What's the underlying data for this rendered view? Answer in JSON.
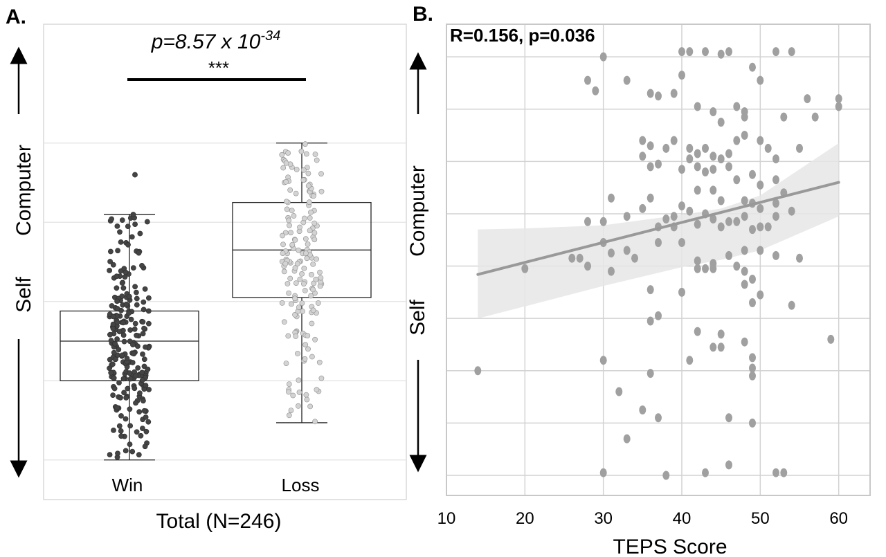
{
  "chart_data": [
    {
      "type": "box",
      "panel_label": "A.",
      "xlabel": "Total (N=246)",
      "categories": [
        "Win",
        "Loss"
      ],
      "y_direction_labels": {
        "upper": "Computer",
        "lower": "Self"
      },
      "ylim": [
        -0.5,
        5.5
      ],
      "grid": true,
      "annotation": {
        "prefix": "p=8.57 x 10",
        "exponent": "-34",
        "significance": "***"
      },
      "boxes": [
        {
          "name": "Win",
          "q1": 1.0,
          "median": 1.5,
          "q3": 1.88,
          "whisker_low": 0.0,
          "whisker_high": 3.1,
          "outliers": [
            3.6
          ],
          "point_color": "#444444"
        },
        {
          "name": "Loss",
          "q1": 2.05,
          "median": 2.65,
          "q3": 3.25,
          "whisker_low": 0.47,
          "whisker_high": 4.0,
          "outliers": [],
          "point_color": "#d3d3d3"
        }
      ]
    },
    {
      "type": "scatter",
      "panel_label": "B.",
      "annotation": "R=0.156, p=0.036",
      "xlabel": "TEPS Score",
      "y_direction_labels": {
        "upper": "Computer",
        "lower": "Self"
      },
      "xlim": [
        10,
        64
      ],
      "xticks": [
        10,
        20,
        30,
        40,
        50,
        60
      ],
      "ylim": [
        0,
        8.2
      ],
      "grid": true,
      "regression": {
        "x": [
          14,
          60
        ],
        "y": [
          3.84,
          5.6
        ]
      },
      "ci_band": {
        "x": [
          14,
          20,
          30,
          40,
          45,
          50,
          60
        ],
        "upper": [
          4.7,
          4.72,
          4.78,
          4.98,
          5.1,
          5.35,
          6.35
        ],
        "lower": [
          3.0,
          3.23,
          3.62,
          3.98,
          4.12,
          4.3,
          4.95
        ]
      },
      "points": [
        [
          30,
          8.0
        ],
        [
          28,
          7.55
        ],
        [
          29,
          7.35
        ],
        [
          33,
          7.55
        ],
        [
          40,
          8.1
        ],
        [
          41,
          8.1
        ],
        [
          43,
          8.1
        ],
        [
          45,
          8.05
        ],
        [
          46,
          8.1
        ],
        [
          52,
          8.1
        ],
        [
          54,
          8.1
        ],
        [
          49,
          7.8
        ],
        [
          40,
          7.65
        ],
        [
          50,
          7.55
        ],
        [
          36,
          7.3
        ],
        [
          37,
          7.25
        ],
        [
          39,
          7.3
        ],
        [
          42,
          7.05
        ],
        [
          47,
          7.05
        ],
        [
          48,
          6.95
        ],
        [
          56,
          7.2
        ],
        [
          60,
          7.2
        ],
        [
          60,
          7.05
        ],
        [
          57,
          6.85
        ],
        [
          44,
          6.95
        ],
        [
          48,
          6.85
        ],
        [
          53,
          6.85
        ],
        [
          45,
          6.75
        ],
        [
          35,
          6.4
        ],
        [
          36,
          6.3
        ],
        [
          38,
          6.25
        ],
        [
          39,
          6.4
        ],
        [
          41,
          6.25
        ],
        [
          42,
          6.15
        ],
        [
          43,
          6.25
        ],
        [
          44,
          6.1
        ],
        [
          45,
          6.05
        ],
        [
          46,
          6.15
        ],
        [
          47,
          6.4
        ],
        [
          48,
          6.5
        ],
        [
          50,
          6.4
        ],
        [
          51,
          6.25
        ],
        [
          52,
          6.05
        ],
        [
          55,
          6.25
        ],
        [
          35,
          6.1
        ],
        [
          36,
          5.9
        ],
        [
          37,
          5.95
        ],
        [
          40,
          5.85
        ],
        [
          41,
          6.05
        ],
        [
          42,
          5.9
        ],
        [
          43,
          5.8
        ],
        [
          44,
          5.85
        ],
        [
          46,
          5.9
        ],
        [
          47,
          5.65
        ],
        [
          49,
          5.75
        ],
        [
          50,
          5.55
        ],
        [
          52,
          5.65
        ],
        [
          31,
          5.3
        ],
        [
          36,
          5.3
        ],
        [
          40,
          5.15
        ],
        [
          42,
          5.45
        ],
        [
          44,
          5.45
        ],
        [
          45,
          5.25
        ],
        [
          48,
          5.25
        ],
        [
          49,
          5.2
        ],
        [
          50,
          5.1
        ],
        [
          52,
          5.2
        ],
        [
          53,
          5.4
        ],
        [
          35,
          5.1
        ],
        [
          38,
          4.9
        ],
        [
          39,
          4.95
        ],
        [
          41,
          5.05
        ],
        [
          43,
          5.0
        ],
        [
          44,
          4.9
        ],
        [
          46,
          4.85
        ],
        [
          48,
          4.95
        ],
        [
          50,
          4.75
        ],
        [
          52,
          4.95
        ],
        [
          54,
          5.05
        ],
        [
          28,
          4.85
        ],
        [
          30,
          4.85
        ],
        [
          33,
          4.95
        ],
        [
          37,
          4.75
        ],
        [
          39,
          4.75
        ],
        [
          42,
          4.8
        ],
        [
          45,
          4.75
        ],
        [
          47,
          4.85
        ],
        [
          49,
          4.7
        ],
        [
          51,
          4.75
        ],
        [
          30,
          4.45
        ],
        [
          31,
          4.25
        ],
        [
          33,
          4.3
        ],
        [
          34,
          4.15
        ],
        [
          37,
          4.45
        ],
        [
          40,
          4.45
        ],
        [
          42,
          4.1
        ],
        [
          44,
          4.05
        ],
        [
          46,
          4.2
        ],
        [
          48,
          4.3
        ],
        [
          50,
          4.3
        ],
        [
          52,
          4.2
        ],
        [
          55,
          4.15
        ],
        [
          26,
          4.15
        ],
        [
          27,
          4.15
        ],
        [
          28,
          4.0
        ],
        [
          31,
          3.9
        ],
        [
          20,
          3.95
        ],
        [
          42,
          3.95
        ],
        [
          43,
          3.95
        ],
        [
          44,
          3.95
        ],
        [
          47,
          4.0
        ],
        [
          48,
          3.9
        ],
        [
          49,
          3.75
        ],
        [
          48,
          3.65
        ],
        [
          36,
          3.55
        ],
        [
          40,
          3.5
        ],
        [
          49,
          3.3
        ],
        [
          50,
          3.45
        ],
        [
          54,
          3.25
        ],
        [
          36,
          2.95
        ],
        [
          37,
          3.05
        ],
        [
          42,
          2.75
        ],
        [
          45,
          2.7
        ],
        [
          44,
          2.45
        ],
        [
          45,
          2.45
        ],
        [
          48,
          2.55
        ],
        [
          41,
          2.2
        ],
        [
          49,
          2.25
        ],
        [
          59,
          2.6
        ],
        [
          14,
          2.0
        ],
        [
          30,
          2.2
        ],
        [
          36,
          1.95
        ],
        [
          49,
          2.05
        ],
        [
          49,
          1.9
        ],
        [
          32,
          1.6
        ],
        [
          35,
          1.25
        ],
        [
          37,
          1.1
        ],
        [
          46,
          1.1
        ],
        [
          49,
          1.0
        ],
        [
          33,
          0.7
        ],
        [
          30,
          0.05
        ],
        [
          38,
          0.0
        ],
        [
          43,
          0.05
        ],
        [
          46,
          0.2
        ],
        [
          52,
          0.05
        ],
        [
          53,
          0.05
        ]
      ]
    }
  ]
}
